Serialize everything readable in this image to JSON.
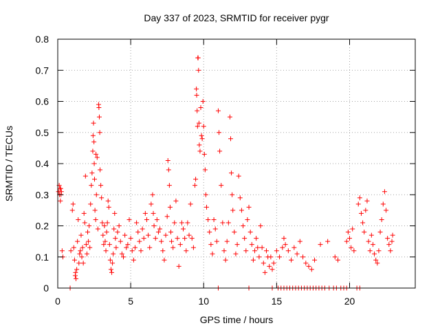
{
  "chart_data": {
    "type": "scatter",
    "title": "Day 337 of 2023, SRMTID for receiver pygr",
    "xlabel": "GPS time / hours",
    "ylabel": "SRMTID / TECUs",
    "xlim": [
      0,
      24.5
    ],
    "ylim": [
      0,
      0.8
    ],
    "xticks": [
      0,
      5,
      10,
      15,
      20
    ],
    "yticks": [
      0,
      0.1,
      0.2,
      0.3,
      0.4,
      0.5,
      0.6,
      0.7,
      0.8
    ],
    "grid": true,
    "marker": "+",
    "color": "#ff0000",
    "series": [
      {
        "name": "SRMTID",
        "points": [
          [
            0.05,
            0.31
          ],
          [
            0.1,
            0.33
          ],
          [
            0.12,
            0.3
          ],
          [
            0.15,
            0.32
          ],
          [
            0.18,
            0.28
          ],
          [
            0.2,
            0.32
          ],
          [
            0.22,
            0.3
          ],
          [
            0.25,
            0.31
          ],
          [
            0.3,
            0.12
          ],
          [
            0.35,
            0.1
          ],
          [
            0.9,
            0.12
          ],
          [
            1.0,
            0.25
          ],
          [
            1.05,
            0.27
          ],
          [
            1.1,
            0.13
          ],
          [
            1.15,
            0.09
          ],
          [
            1.2,
            0.04
          ],
          [
            1.22,
            0.05
          ],
          [
            1.25,
            0.03
          ],
          [
            1.3,
            0.06
          ],
          [
            1.35,
            0.15
          ],
          [
            1.4,
            0.22
          ],
          [
            1.45,
            0.08
          ],
          [
            1.5,
            0.11
          ],
          [
            1.55,
            0.12
          ],
          [
            1.6,
            0.17
          ],
          [
            1.65,
            0.1
          ],
          [
            1.7,
            0.13
          ],
          [
            1.75,
            0.08
          ],
          [
            1.8,
            0.24
          ],
          [
            1.85,
            0.21
          ],
          [
            1.9,
            0.36
          ],
          [
            1.95,
            0.14
          ],
          [
            2.0,
            0.11
          ],
          [
            2.05,
            0.18
          ],
          [
            2.1,
            0.15
          ],
          [
            2.15,
            0.2
          ],
          [
            2.2,
            0.13
          ],
          [
            2.25,
            0.27
          ],
          [
            2.3,
            0.33
          ],
          [
            2.35,
            0.37
          ],
          [
            2.4,
            0.44
          ],
          [
            2.42,
            0.49
          ],
          [
            2.45,
            0.53
          ],
          [
            2.48,
            0.47
          ],
          [
            2.5,
            0.4
          ],
          [
            2.52,
            0.35
          ],
          [
            2.55,
            0.25
          ],
          [
            2.6,
            0.22
          ],
          [
            2.62,
            0.43
          ],
          [
            2.65,
            0.3
          ],
          [
            2.7,
            0.42
          ],
          [
            2.75,
            0.19
          ],
          [
            2.8,
            0.59
          ],
          [
            2.82,
            0.58
          ],
          [
            2.85,
            0.55
          ],
          [
            2.88,
            0.5
          ],
          [
            2.9,
            0.38
          ],
          [
            2.95,
            0.33
          ],
          [
            3.0,
            0.29
          ],
          [
            3.05,
            0.21
          ],
          [
            3.1,
            0.17
          ],
          [
            3.15,
            0.14
          ],
          [
            3.2,
            0.2
          ],
          [
            3.25,
            0.15
          ],
          [
            3.3,
            0.12
          ],
          [
            3.35,
            0.18
          ],
          [
            3.4,
            0.21
          ],
          [
            3.45,
            0.28
          ],
          [
            3.5,
            0.26
          ],
          [
            3.55,
            0.14
          ],
          [
            3.6,
            0.09
          ],
          [
            3.65,
            0.06
          ],
          [
            3.7,
            0.05
          ],
          [
            3.75,
            0.08
          ],
          [
            3.8,
            0.11
          ],
          [
            3.85,
            0.19
          ],
          [
            3.9,
            0.24
          ],
          [
            3.95,
            0.16
          ],
          [
            4.0,
            0.13
          ],
          [
            4.1,
            0.18
          ],
          [
            4.2,
            0.2
          ],
          [
            4.3,
            0.15
          ],
          [
            4.4,
            0.11
          ],
          [
            4.5,
            0.1
          ],
          [
            4.6,
            0.17
          ],
          [
            4.7,
            0.13
          ],
          [
            4.8,
            0.14
          ],
          [
            4.9,
            0.22
          ],
          [
            5.0,
            0.16
          ],
          [
            5.1,
            0.12
          ],
          [
            5.2,
            0.09
          ],
          [
            5.3,
            0.13
          ],
          [
            5.4,
            0.21
          ],
          [
            5.5,
            0.18
          ],
          [
            5.6,
            0.15
          ],
          [
            5.7,
            0.12
          ],
          [
            5.8,
            0.19
          ],
          [
            5.9,
            0.16
          ],
          [
            6.0,
            0.24
          ],
          [
            6.1,
            0.22
          ],
          [
            6.2,
            0.17
          ],
          [
            6.3,
            0.13
          ],
          [
            6.4,
            0.27
          ],
          [
            6.5,
            0.3
          ],
          [
            6.55,
            0.24
          ],
          [
            6.6,
            0.2
          ],
          [
            6.7,
            0.16
          ],
          [
            6.8,
            0.22
          ],
          [
            6.9,
            0.18
          ],
          [
            7.0,
            0.19
          ],
          [
            7.1,
            0.15
          ],
          [
            7.2,
            0.12
          ],
          [
            7.3,
            0.09
          ],
          [
            7.4,
            0.17
          ],
          [
            7.5,
            0.23
          ],
          [
            7.55,
            0.41
          ],
          [
            7.6,
            0.38
          ],
          [
            7.65,
            0.33
          ],
          [
            7.7,
            0.26
          ],
          [
            7.75,
            0.18
          ],
          [
            7.8,
            0.15
          ],
          [
            7.9,
            0.13
          ],
          [
            8.0,
            0.21
          ],
          [
            8.1,
            0.28
          ],
          [
            8.2,
            0.16
          ],
          [
            8.3,
            0.07
          ],
          [
            8.4,
            0.14
          ],
          [
            8.5,
            0.21
          ],
          [
            8.6,
            0.19
          ],
          [
            8.7,
            0.16
          ],
          [
            8.8,
            0.12
          ],
          [
            8.9,
            0.21
          ],
          [
            9.0,
            0.17
          ],
          [
            9.1,
            0.27
          ],
          [
            9.2,
            0.16
          ],
          [
            9.3,
            0.13
          ],
          [
            9.4,
            0.33
          ],
          [
            9.45,
            0.35
          ],
          [
            9.5,
            0.64
          ],
          [
            9.52,
            0.62
          ],
          [
            9.55,
            0.57
          ],
          [
            9.58,
            0.52
          ],
          [
            9.6,
            0.74
          ],
          [
            9.62,
            0.74
          ],
          [
            9.65,
            0.7
          ],
          [
            9.68,
            0.53
          ],
          [
            9.7,
            0.46
          ],
          [
            9.75,
            0.44
          ],
          [
            9.8,
            0.58
          ],
          [
            9.85,
            0.49
          ],
          [
            9.9,
            0.48
          ],
          [
            9.95,
            0.6
          ],
          [
            10.0,
            0.52
          ],
          [
            10.05,
            0.43
          ],
          [
            10.1,
            0.38
          ],
          [
            10.15,
            0.3
          ],
          [
            10.2,
            0.26
          ],
          [
            10.3,
            0.22
          ],
          [
            10.4,
            0.18
          ],
          [
            10.5,
            0.14
          ],
          [
            10.6,
            0.11
          ],
          [
            10.7,
            0.22
          ],
          [
            10.8,
            0.19
          ],
          [
            10.9,
            0.15
          ],
          [
            11.0,
            0.57
          ],
          [
            11.05,
            0.5
          ],
          [
            11.1,
            0.44
          ],
          [
            11.2,
            0.33
          ],
          [
            11.3,
            0.21
          ],
          [
            11.4,
            0.12
          ],
          [
            11.5,
            0.09
          ],
          [
            11.6,
            0.15
          ],
          [
            11.7,
            0.21
          ],
          [
            11.8,
            0.55
          ],
          [
            11.85,
            0.48
          ],
          [
            11.9,
            0.37
          ],
          [
            11.95,
            0.3
          ],
          [
            12.0,
            0.25
          ],
          [
            12.1,
            0.18
          ],
          [
            12.2,
            0.11
          ],
          [
            12.3,
            0.14
          ],
          [
            12.4,
            0.36
          ],
          [
            12.5,
            0.29
          ],
          [
            12.6,
            0.25
          ],
          [
            12.7,
            0.2
          ],
          [
            12.8,
            0.16
          ],
          [
            12.9,
            0.12
          ],
          [
            13.0,
            0.22
          ],
          [
            13.1,
            0.26
          ],
          [
            13.2,
            0.18
          ],
          [
            13.3,
            0.14
          ],
          [
            13.4,
            0.09
          ],
          [
            13.5,
            0.12
          ],
          [
            13.6,
            0.16
          ],
          [
            13.7,
            0.13
          ],
          [
            13.8,
            0.1
          ],
          [
            13.9,
            0.2
          ],
          [
            14.0,
            0.13
          ],
          [
            14.1,
            0.08
          ],
          [
            14.2,
            0.05
          ],
          [
            14.3,
            0.12
          ],
          [
            14.4,
            0.1
          ],
          [
            14.5,
            0.07
          ],
          [
            14.6,
            0.1
          ],
          [
            14.7,
            0.06
          ],
          [
            14.8,
            0.08
          ],
          [
            15.0,
            0.12
          ],
          [
            15.2,
            0.1
          ],
          [
            15.4,
            0.13
          ],
          [
            15.5,
            0.16
          ],
          [
            15.6,
            0.14
          ],
          [
            15.8,
            0.12
          ],
          [
            16.0,
            0.09
          ],
          [
            16.2,
            0.13
          ],
          [
            16.4,
            0.11
          ],
          [
            16.6,
            0.15
          ],
          [
            16.8,
            0.1
          ],
          [
            17.0,
            0.08
          ],
          [
            17.2,
            0.07
          ],
          [
            17.4,
            0.06
          ],
          [
            17.6,
            0.09
          ],
          [
            18.0,
            0.14
          ],
          [
            18.5,
            0.15
          ],
          [
            19.0,
            0.1
          ],
          [
            19.2,
            0.09
          ],
          [
            19.8,
            0.15
          ],
          [
            19.9,
            0.18
          ],
          [
            20.0,
            0.16
          ],
          [
            20.1,
            0.13
          ],
          [
            20.2,
            0.19
          ],
          [
            20.3,
            0.12
          ],
          [
            20.6,
            0.27
          ],
          [
            20.7,
            0.29
          ],
          [
            20.8,
            0.24
          ],
          [
            20.9,
            0.21
          ],
          [
            21.0,
            0.18
          ],
          [
            21.1,
            0.25
          ],
          [
            21.2,
            0.28
          ],
          [
            21.3,
            0.15
          ],
          [
            21.4,
            0.12
          ],
          [
            21.5,
            0.17
          ],
          [
            21.6,
            0.14
          ],
          [
            21.7,
            0.11
          ],
          [
            21.8,
            0.09
          ],
          [
            21.9,
            0.08
          ],
          [
            22.0,
            0.12
          ],
          [
            22.1,
            0.18
          ],
          [
            22.2,
            0.22
          ],
          [
            22.3,
            0.27
          ],
          [
            22.4,
            0.31
          ],
          [
            22.5,
            0.25
          ],
          [
            22.6,
            0.16
          ],
          [
            22.7,
            0.14
          ],
          [
            22.8,
            0.12
          ],
          [
            22.9,
            0.15
          ],
          [
            22.95,
            0.17
          ],
          [
            0.85,
            0.0
          ],
          [
            11.0,
            0.0
          ],
          [
            13.1,
            0.0
          ],
          [
            14.7,
            0.0
          ],
          [
            15.1,
            0.0
          ],
          [
            15.3,
            0.0
          ],
          [
            15.5,
            0.0
          ],
          [
            15.7,
            0.0
          ],
          [
            15.9,
            0.0
          ],
          [
            16.1,
            0.0
          ],
          [
            16.3,
            0.0
          ],
          [
            16.5,
            0.0
          ],
          [
            16.7,
            0.0
          ],
          [
            16.9,
            0.0
          ],
          [
            17.1,
            0.0
          ],
          [
            17.3,
            0.0
          ],
          [
            17.5,
            0.0
          ],
          [
            17.7,
            0.0
          ],
          [
            17.9,
            0.0
          ],
          [
            18.1,
            0.0
          ],
          [
            18.3,
            0.0
          ],
          [
            18.6,
            0.0
          ],
          [
            18.9,
            0.0
          ],
          [
            19.1,
            0.0
          ],
          [
            19.4,
            0.0
          ],
          [
            19.6,
            0.0
          ],
          [
            19.8,
            0.0
          ],
          [
            20.5,
            0.0
          ],
          [
            20.7,
            0.0
          ]
        ]
      }
    ]
  }
}
